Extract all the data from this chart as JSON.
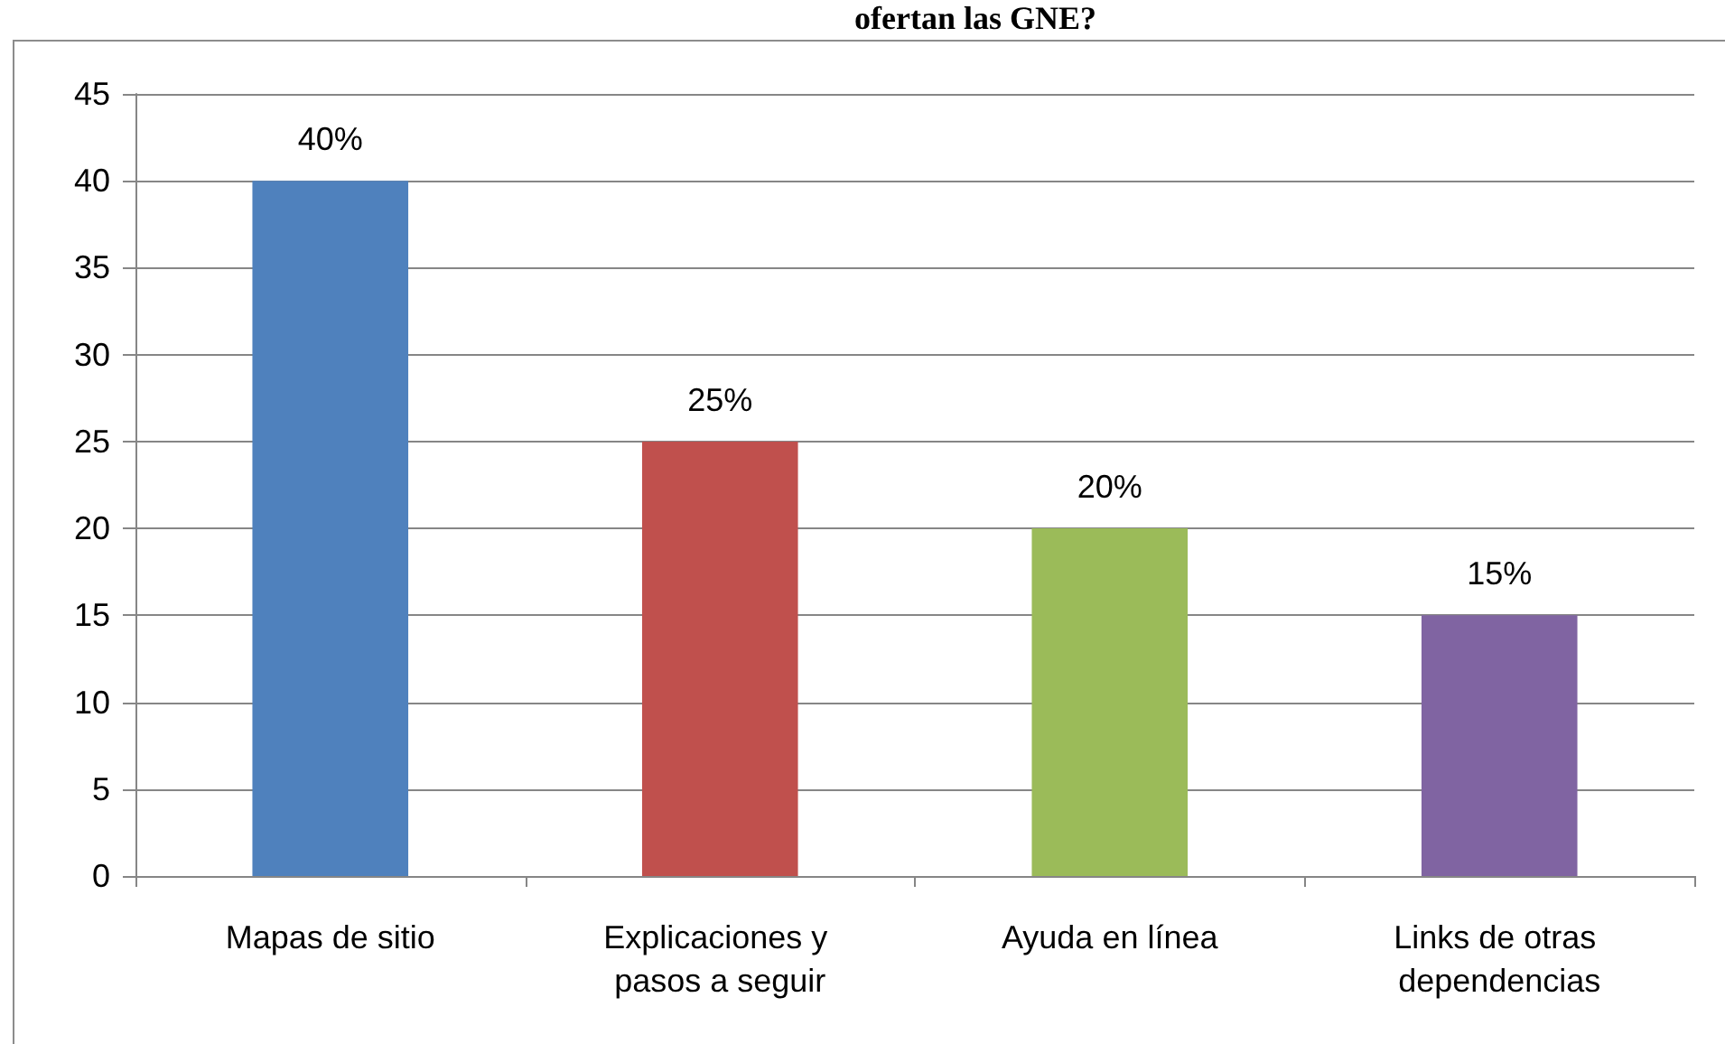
{
  "chart_data": {
    "type": "bar",
    "title": "ofertan las GNE?",
    "categories": [
      "Mapas de sitio",
      "Explicaciones y pasos a seguir",
      "Ayuda en línea",
      "Links de otras dependencias"
    ],
    "values": [
      40,
      25,
      20,
      15
    ],
    "value_labels": [
      "40%",
      "25%",
      "20%",
      "15%"
    ],
    "colors": [
      "#4f81bd",
      "#c0504d",
      "#9bbb59",
      "#8064a2"
    ],
    "ylim": [
      0,
      45
    ],
    "yticks": [
      0,
      5,
      10,
      15,
      20,
      25,
      30,
      35,
      40,
      45
    ],
    "grid": true
  }
}
